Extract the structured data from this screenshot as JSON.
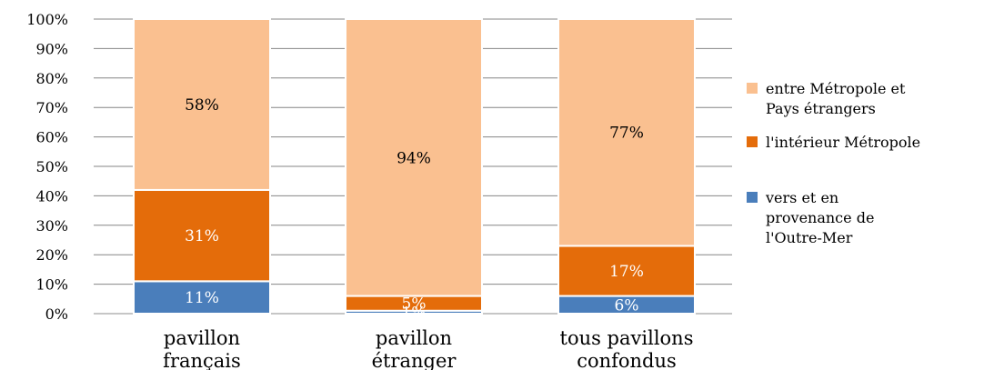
{
  "chart_data": {
    "type": "bar",
    "stacked": true,
    "categories": [
      [
        "pavillon",
        "français"
      ],
      [
        "pavillon",
        "étranger"
      ],
      [
        "tous pavillons",
        "confondus"
      ]
    ],
    "series": [
      {
        "name": [
          "vers et en",
          "provenance de",
          "l'Outre-Mer"
        ],
        "color": "#4a7ebb",
        "values": [
          11,
          1,
          6
        ],
        "labels": [
          "11%",
          "1%",
          "6%"
        ],
        "label_color": "#ffffff"
      },
      {
        "name": [
          "l'intérieur Métropole"
        ],
        "color": "#e46c0a",
        "values": [
          31,
          5,
          17
        ],
        "labels": [
          "31%",
          "5%",
          "17%"
        ],
        "label_color": "#ffffff"
      },
      {
        "name": [
          "entre Métropole et",
          "Pays étrangers"
        ],
        "color": "#fac090",
        "values": [
          58,
          94,
          77
        ],
        "labels": [
          "58%",
          "94%",
          "77%"
        ],
        "label_color": "#000000"
      }
    ],
    "yticks": [
      "0%",
      "10%",
      "20%",
      "30%",
      "40%",
      "50%",
      "60%",
      "70%",
      "80%",
      "90%",
      "100%"
    ],
    "ylim": [
      0,
      100
    ],
    "grid": true,
    "legend_position": "right"
  }
}
